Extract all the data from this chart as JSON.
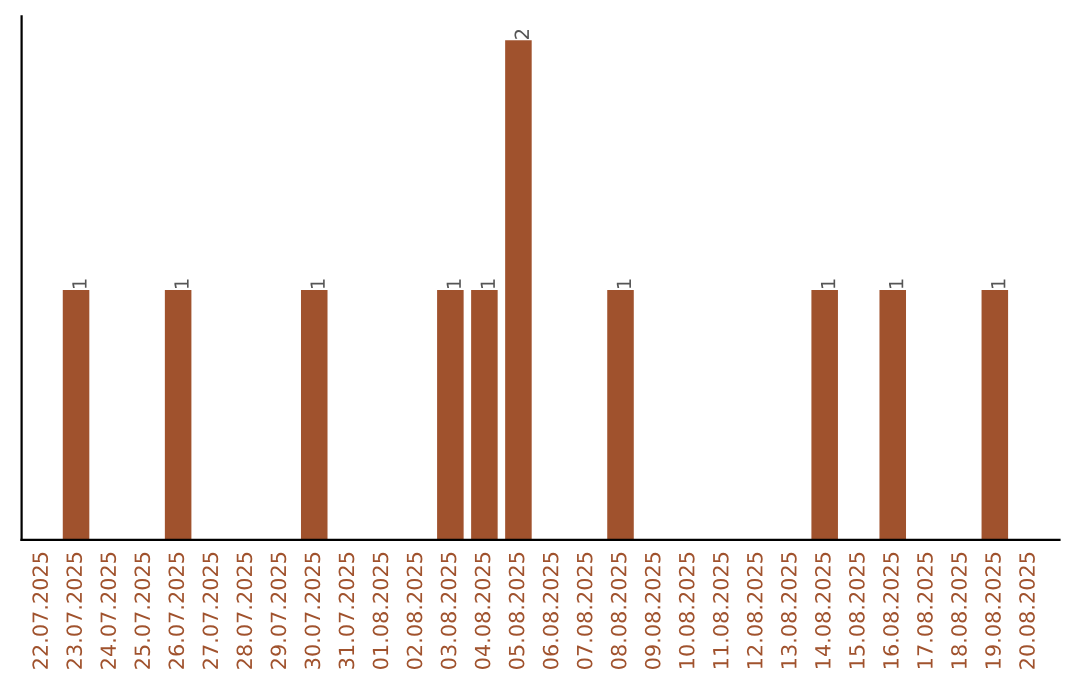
{
  "chart_data": {
    "type": "bar",
    "categories": [
      "22.07.2025",
      "23.07.2025",
      "24.07.2025",
      "25.07.2025",
      "26.07.2025",
      "27.07.2025",
      "28.07.2025",
      "29.07.2025",
      "30.07.2025",
      "31.07.2025",
      "01.08.2025",
      "02.08.2025",
      "03.08.2025",
      "04.08.2025",
      "05.08.2025",
      "06.08.2025",
      "07.08.2025",
      "08.08.2025",
      "09.08.2025",
      "10.08.2025",
      "11.08.2025",
      "12.08.2025",
      "13.08.2025",
      "14.08.2025",
      "15.08.2025",
      "16.08.2025",
      "17.08.2025",
      "18.08.2025",
      "19.08.2025",
      "20.08.2025"
    ],
    "values": [
      0,
      1,
      0,
      0,
      1,
      0,
      0,
      0,
      1,
      0,
      0,
      0,
      1,
      1,
      2,
      0,
      0,
      1,
      0,
      0,
      0,
      0,
      0,
      1,
      0,
      1,
      0,
      0,
      1,
      0
    ],
    "value_labels": [
      null,
      "1",
      null,
      null,
      "1",
      null,
      null,
      null,
      "1",
      null,
      null,
      null,
      "1",
      "1",
      "2",
      null,
      null,
      "1",
      null,
      null,
      null,
      null,
      null,
      "1",
      null,
      "1",
      null,
      null,
      "1",
      null
    ],
    "color": "#a0522d",
    "grid": false,
    "legend": false
  }
}
